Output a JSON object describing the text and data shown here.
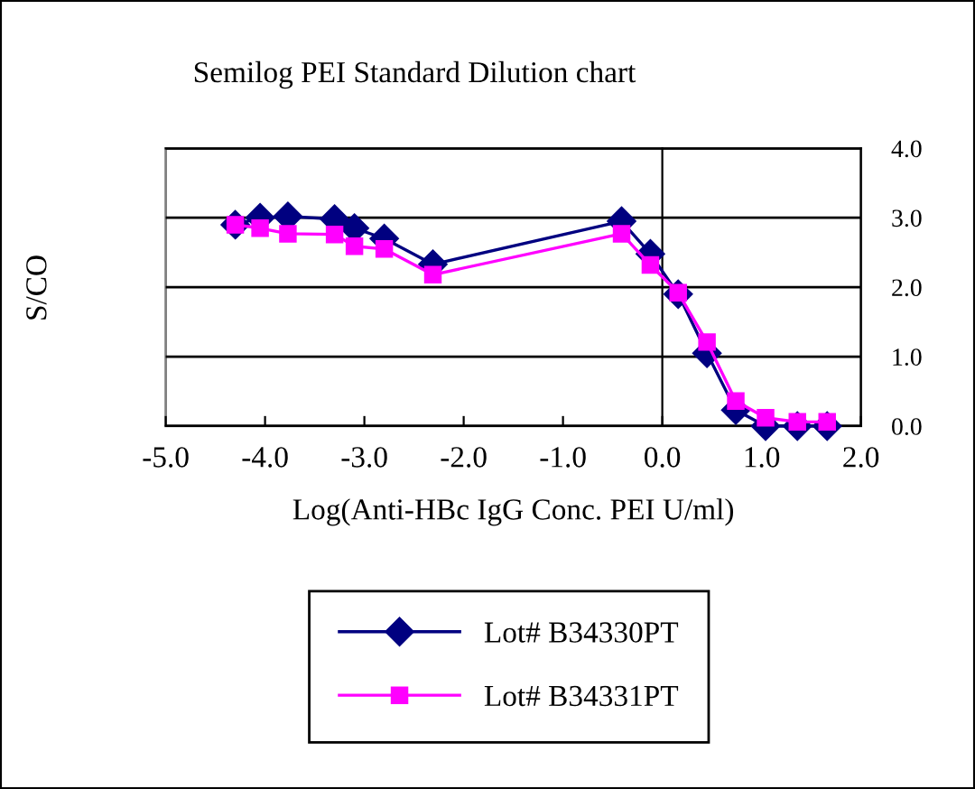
{
  "chart_data": {
    "type": "line",
    "title": "Semilog PEI Standard Dilution chart",
    "xlabel": "Log(Anti-HBc IgG Conc. PEI U/ml)",
    "ylabel": "S/CO",
    "x": [
      -4.3,
      -4.05,
      -3.77,
      -3.3,
      -3.1,
      -2.8,
      -2.31,
      -0.41,
      -0.12,
      0.16,
      0.45,
      0.74,
      1.04,
      1.36,
      1.66
    ],
    "series": [
      {
        "name": "Lot# B34330PT",
        "color": "#000080",
        "marker": "diamond",
        "values": [
          2.9,
          3.0,
          3.02,
          2.98,
          2.85,
          2.7,
          2.33,
          2.95,
          2.48,
          1.9,
          1.05,
          0.23,
          0.0,
          0.0,
          0.0
        ]
      },
      {
        "name": "Lot# B34331PT",
        "color": "#ff00ff",
        "marker": "square",
        "values": [
          2.9,
          2.85,
          2.77,
          2.76,
          2.59,
          2.55,
          2.18,
          2.77,
          2.32,
          1.92,
          1.21,
          0.36,
          0.12,
          0.06,
          0.06
        ]
      }
    ],
    "xlim": [
      -5,
      2
    ],
    "xticks": [
      {
        "value": -5,
        "label": "-5.0"
      },
      {
        "value": -4,
        "label": "-4.0"
      },
      {
        "value": -3,
        "label": "-3.0"
      },
      {
        "value": -2,
        "label": "-2.0"
      },
      {
        "value": -1,
        "label": "-1.0"
      },
      {
        "value": 0,
        "label": "0.0"
      },
      {
        "value": 1,
        "label": "1.0"
      },
      {
        "value": 2,
        "label": "2.0"
      }
    ],
    "ylim": [
      0,
      4
    ],
    "yticks": [
      {
        "value": 0,
        "label": "0.0"
      },
      {
        "value": 1,
        "label": "1.0"
      },
      {
        "value": 2,
        "label": "2.0"
      },
      {
        "value": 3,
        "label": "3.0"
      },
      {
        "value": 4,
        "label": "4.0"
      }
    ],
    "grid": "y",
    "legend": "bottom",
    "line_style": "solid"
  }
}
